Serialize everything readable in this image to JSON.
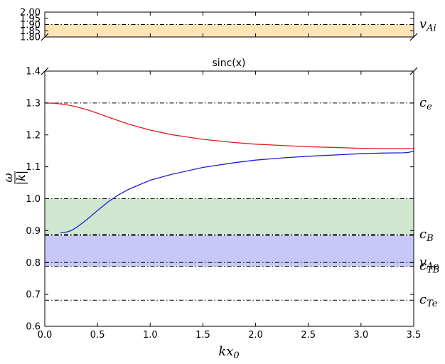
{
  "chart_data": {
    "type": "line",
    "title": "sinc(x)",
    "xlabel": "kx0",
    "ylabel": "ω/|k|",
    "xlim": [
      0.0,
      3.5
    ],
    "x_ticks": [
      "0.0",
      "0.5",
      "1.0",
      "1.5",
      "2.0",
      "2.5",
      "3.0",
      "3.5"
    ],
    "grid": false,
    "panels": [
      {
        "name": "top-panel",
        "ylim": [
          1.8,
          2.0
        ],
        "y_ticks": [
          "1.80",
          "1.85",
          "1.90",
          "1.95",
          "2.00"
        ],
        "bands": [
          {
            "ymin": 1.8,
            "ymax": 1.9,
            "color": "#fde5b5"
          }
        ],
        "reference_lines": [
          {
            "y": 1.9,
            "label": "vAi",
            "label_main": "v",
            "label_sub": "Ai"
          }
        ]
      },
      {
        "name": "main-panel",
        "ylim": [
          0.6,
          1.4
        ],
        "y_ticks": [
          "0.6",
          "0.7",
          "0.8",
          "0.9",
          "1.0",
          "1.1",
          "1.2",
          "1.3",
          "1.4"
        ],
        "bands": [
          {
            "ymin": 0.888,
            "ymax": 1.0,
            "color": "#cfe6cf"
          },
          {
            "ymin": 0.788,
            "ymax": 0.885,
            "color": "#c8c8f8"
          }
        ],
        "reference_lines": [
          {
            "y": 1.3,
            "label": "ce",
            "label_main": "c",
            "label_sub": "e"
          },
          {
            "y": 1.0,
            "label": "",
            "label_main": "",
            "label_sub": ""
          },
          {
            "y": 0.888,
            "label": "cB",
            "label_main": "c",
            "label_sub": "B"
          },
          {
            "y": 0.885,
            "label": "",
            "label_main": "",
            "label_sub": ""
          },
          {
            "y": 0.8,
            "label": "vAe",
            "label_main": "v",
            "label_sub": "Ae"
          },
          {
            "y": 0.788,
            "label": "cTB",
            "label_main": "c",
            "label_sub": "TB"
          },
          {
            "y": 0.682,
            "label": "cTe",
            "label_main": "c",
            "label_sub": "Te"
          }
        ],
        "series": [
          {
            "color": "#e41a1c",
            "x": [
              0.0,
              0.1,
              0.2,
              0.3,
              0.4,
              0.5,
              0.6,
              0.8,
              1.0,
              1.2,
              1.5,
              1.8,
              2.0,
              2.3,
              2.5,
              2.8,
              3.0,
              3.2,
              3.4,
              3.5
            ],
            "y": [
              1.3,
              1.299,
              1.295,
              1.288,
              1.279,
              1.268,
              1.256,
              1.233,
              1.215,
              1.201,
              1.186,
              1.176,
              1.171,
              1.166,
              1.163,
              1.16,
              1.158,
              1.157,
              1.157,
              1.157
            ]
          },
          {
            "color": "#1f1fd6",
            "x": [
              0.15,
              0.2,
              0.25,
              0.3,
              0.35,
              0.4,
              0.5,
              0.6,
              0.7,
              0.8,
              1.0,
              1.2,
              1.5,
              1.8,
              2.0,
              2.3,
              2.5,
              2.8,
              3.0,
              3.2,
              3.4,
              3.45,
              3.5
            ],
            "y": [
              0.893,
              0.895,
              0.9,
              0.91,
              0.922,
              0.935,
              0.963,
              0.99,
              1.012,
              1.03,
              1.058,
              1.076,
              1.098,
              1.113,
              1.121,
              1.129,
              1.133,
              1.138,
              1.141,
              1.143,
              1.144,
              1.145,
              1.149
            ]
          }
        ]
      }
    ]
  }
}
